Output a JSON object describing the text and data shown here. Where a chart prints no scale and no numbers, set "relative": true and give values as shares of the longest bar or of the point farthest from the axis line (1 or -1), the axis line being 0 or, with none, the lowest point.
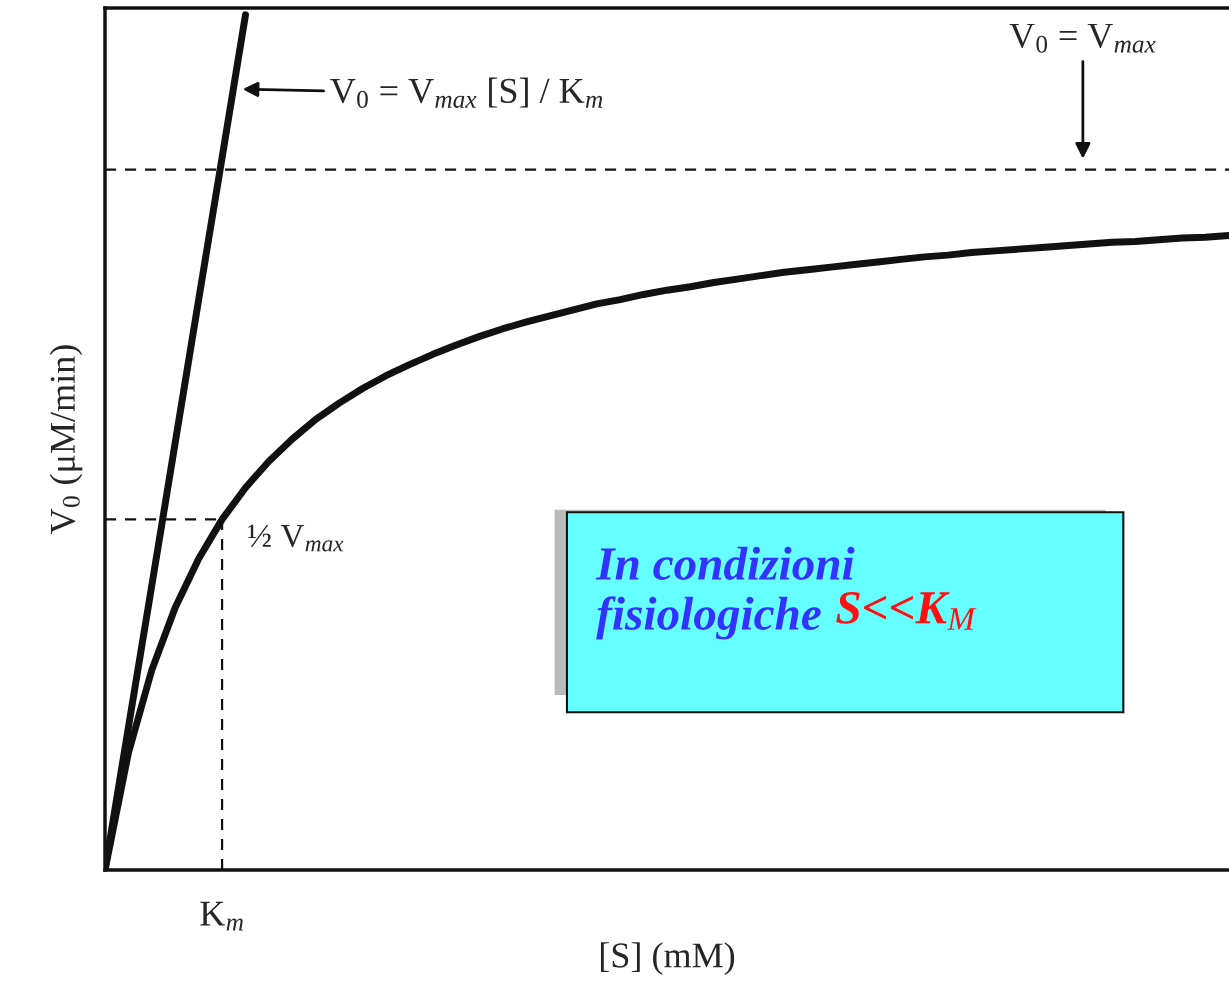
{
  "chart_data": {
    "type": "line",
    "relative": true,
    "xlabel": "[S] (mM)",
    "ylabel": "V$_{0}$ (μM/min)",
    "categories": [
      null,
      null,
      null,
      null,
      null,
      null,
      null,
      null,
      null,
      null,
      null,
      null,
      null,
      null,
      null,
      null,
      null,
      null,
      null,
      null,
      null,
      null,
      null,
      null,
      null,
      null,
      null,
      null,
      null,
      null,
      null,
      null,
      null,
      null,
      null,
      null,
      null,
      null,
      null,
      null,
      null,
      null,
      null,
      null,
      null,
      null,
      null,
      null,
      null
    ],
    "series": [
      {
        "color": "#111111",
        "values": [
          0,
          0.137,
          0.234,
          0.307,
          0.364,
          0.41,
          0.447,
          0.478,
          0.504,
          0.527,
          0.546,
          0.563,
          0.578,
          0.591,
          0.603,
          0.614,
          0.624,
          0.633,
          0.641,
          0.648,
          0.655,
          0.662,
          0.667,
          0.673,
          0.678,
          0.682,
          0.687,
          0.691,
          0.695,
          0.699,
          0.702,
          0.705,
          0.708,
          0.711,
          0.714,
          0.717,
          0.719,
          0.722,
          0.724,
          0.726,
          0.728,
          0.73,
          0.732,
          0.734,
          0.735,
          0.737,
          0.739,
          0.74,
          0.742
        ]
      },
      {
        "color": "#111111",
        "values": [
          0,
          0.167,
          0.333,
          0.5,
          0.667,
          0.833,
          1.0,
          null,
          null,
          null,
          null,
          null,
          null,
          null,
          null,
          null,
          null,
          null,
          null,
          null,
          null,
          null,
          null,
          null,
          null,
          null,
          null,
          null,
          null,
          null,
          null,
          null,
          null,
          null,
          null,
          null,
          null,
          null,
          null,
          null,
          null,
          null,
          null,
          null,
          null,
          null,
          null,
          null,
          null
        ]
      },
      {
        "color": "#111111",
        "line_style": "dashed",
        "values": [
          0.41,
          0.41,
          0.41,
          0.41,
          0.41,
          0.41,
          null,
          null,
          null,
          null,
          null,
          null,
          null,
          null,
          null,
          null,
          null,
          null,
          null,
          null,
          null,
          null,
          null,
          null,
          null,
          null,
          null,
          null,
          null,
          null,
          null,
          null,
          null,
          null,
          null,
          null,
          null,
          null,
          null,
          null,
          null,
          null,
          null,
          null,
          null,
          null,
          null,
          null,
          null
        ]
      }
    ],
    "ref_lines": [
      {
        "axis": "y",
        "value": 0.819,
        "line_style": "dashed",
        "color": "#111111"
      }
    ],
    "annotations": [
      "V$_{0}$ = V$_{max}$ [S] / K$_{m}$",
      "V$_{0}$ = V$_{max}$",
      "½ V$_{max}$",
      "K$_{m}$",
      "In condizioni\nfisiologiche",
      "S<<K$_{M}$"
    ],
    "legend": false,
    "marker": "none",
    "line_style": "solid"
  }
}
